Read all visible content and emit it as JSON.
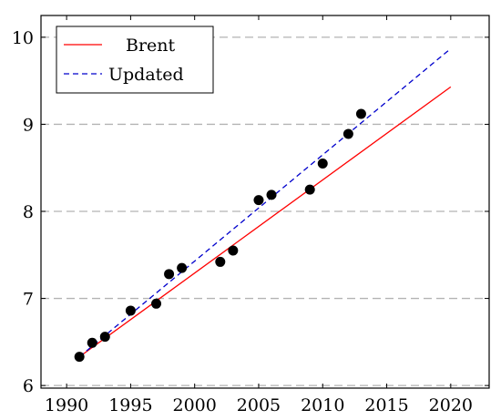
{
  "chart_data": {
    "type": "scatter",
    "title": "",
    "xlabel": "",
    "ylabel": "",
    "xlim": [
      1988,
      2023
    ],
    "ylim": [
      5.97,
      10.25
    ],
    "grid": {
      "y": true,
      "x": false,
      "style": "dashed"
    },
    "legend_position": "top-left",
    "x_ticks": [
      1990,
      1995,
      2000,
      2005,
      2010,
      2015,
      2020
    ],
    "y_ticks": [
      6,
      7,
      8,
      9,
      10
    ],
    "points": {
      "x": [
        1991,
        1992,
        1993,
        1995,
        1997,
        1998,
        1999,
        2002,
        2003,
        2005,
        2006,
        2009,
        2010,
        2012,
        2013
      ],
      "y": [
        6.33,
        6.49,
        6.56,
        6.86,
        6.94,
        7.28,
        7.35,
        7.42,
        7.55,
        8.13,
        8.19,
        8.25,
        8.55,
        8.89,
        9.12
      ],
      "color": "#000000"
    },
    "series": [
      {
        "name": "Brent",
        "x": [
          1991,
          2020
        ],
        "y": [
          6.33,
          9.43
        ],
        "color": "#ff0000",
        "dash": "solid"
      },
      {
        "name": "Updated",
        "x": [
          1991,
          2020
        ],
        "y": [
          6.33,
          9.87
        ],
        "color": "#0000cc",
        "dash": "dashed"
      }
    ]
  }
}
